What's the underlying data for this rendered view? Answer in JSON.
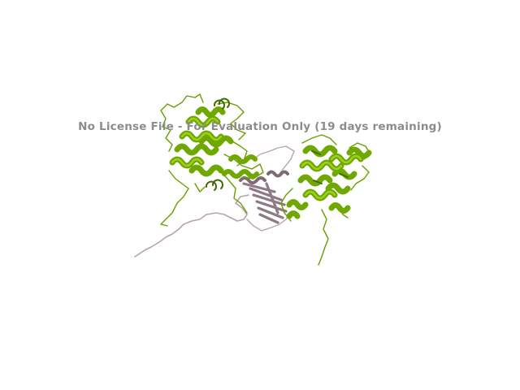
{
  "viewer": {
    "watermark": "No License File - For Evaluation Only (19 days remaining)"
  },
  "structure": {
    "chains": [
      {
        "color": "#6fa800",
        "highlight": "#9ed11c",
        "shade": "#3f6a00"
      },
      {
        "color": "#a08c96",
        "highlight": "#c9b6be",
        "shade": "#6e5c64"
      }
    ]
  }
}
